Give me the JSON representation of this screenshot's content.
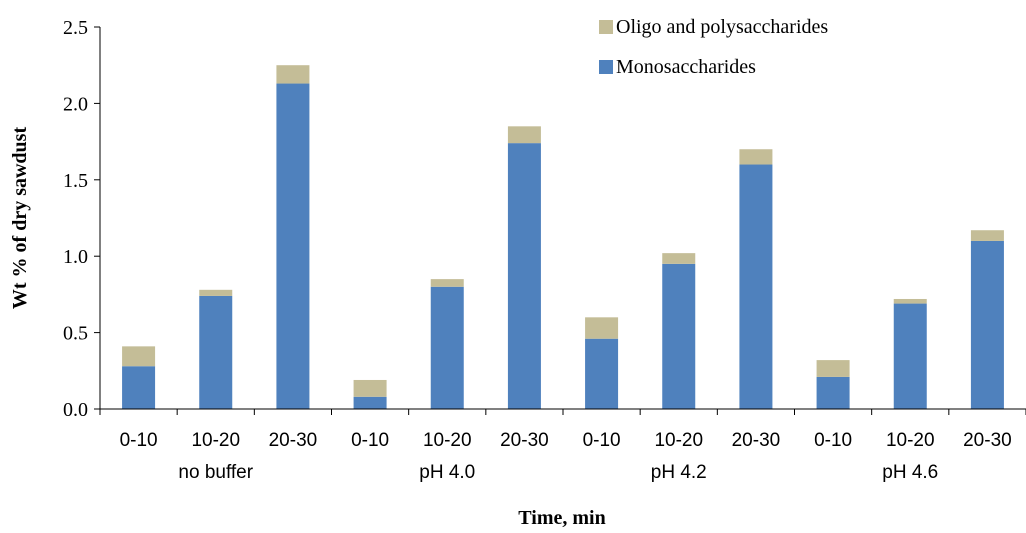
{
  "chart_data": {
    "type": "bar",
    "stacked": true,
    "title": "",
    "xlabel": "Time, min",
    "ylabel": "Wt % of dry sawdust",
    "ylim": [
      0,
      2.5
    ],
    "yticks": [
      "0.0",
      "0.5",
      "1.0",
      "1.5",
      "2.0",
      "2.5"
    ],
    "categories": [
      "0-10",
      "10-20",
      "20-30",
      "0-10",
      "10-20",
      "20-30",
      "0-10",
      "10-20",
      "20-30",
      "0-10",
      "10-20",
      "20-30"
    ],
    "groups": [
      "no buffer",
      "pH 4.0",
      "pH 4.2",
      "pH 4.6"
    ],
    "legend_position": "top-right",
    "grid": false,
    "series": [
      {
        "name": "Monosaccharides",
        "color": "#4f81bd",
        "values": [
          0.28,
          0.74,
          2.13,
          0.08,
          0.8,
          1.74,
          0.46,
          0.95,
          1.6,
          0.21,
          0.69,
          1.1
        ]
      },
      {
        "name": "Oligo and polysaccharides",
        "color": "#c4bd97",
        "values": [
          0.13,
          0.04,
          0.12,
          0.11,
          0.05,
          0.11,
          0.14,
          0.07,
          0.1,
          0.11,
          0.03,
          0.07
        ]
      }
    ]
  }
}
